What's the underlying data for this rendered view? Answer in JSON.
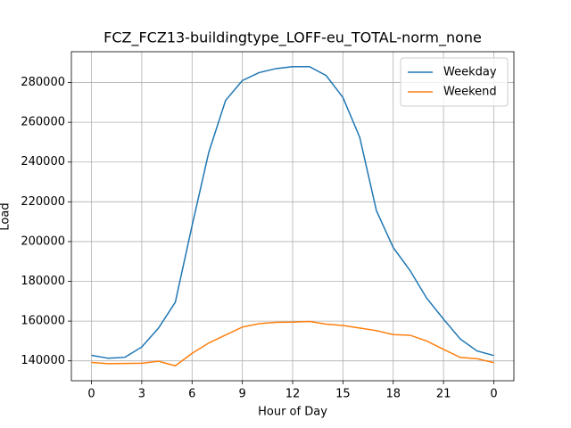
{
  "chart_data": {
    "type": "line",
    "title": "FCZ_FCZ13-buildingtype_LOFF-eu_TOTAL-norm_none",
    "x_label": "Hour of Day",
    "y_label": "Load",
    "x": [
      0,
      1,
      2,
      3,
      4,
      5,
      6,
      7,
      8,
      9,
      10,
      11,
      12,
      13,
      14,
      15,
      16,
      17,
      18,
      19,
      20,
      21,
      22,
      23,
      24
    ],
    "series": [
      {
        "name": "Weekday",
        "color": "#1f77b4",
        "values": [
          142800,
          141300,
          141800,
          147000,
          156500,
          169500,
          208000,
          245000,
          271000,
          281000,
          285000,
          287000,
          288000,
          288000,
          283500,
          272500,
          252500,
          215500,
          197000,
          185500,
          171500,
          161000,
          151000,
          145000,
          142700
        ]
      },
      {
        "name": "Weekend",
        "color": "#ff7f0e",
        "values": [
          139200,
          138600,
          138700,
          138800,
          139800,
          137500,
          143800,
          149000,
          153000,
          157000,
          158700,
          159400,
          159500,
          159800,
          158500,
          157800,
          156500,
          155200,
          153200,
          152900,
          150000,
          145800,
          141700,
          141100,
          139100
        ]
      }
    ],
    "xlim": [
      -1.2,
      25.2
    ],
    "xticks": [
      0,
      3,
      6,
      9,
      12,
      15,
      18,
      21,
      {
        "value": 24,
        "label": "0"
      }
    ],
    "ylim": [
      130000,
      295500
    ],
    "yticks": [
      140000,
      160000,
      180000,
      200000,
      220000,
      240000,
      260000,
      280000
    ],
    "grid": true,
    "legend": "upper right"
  }
}
